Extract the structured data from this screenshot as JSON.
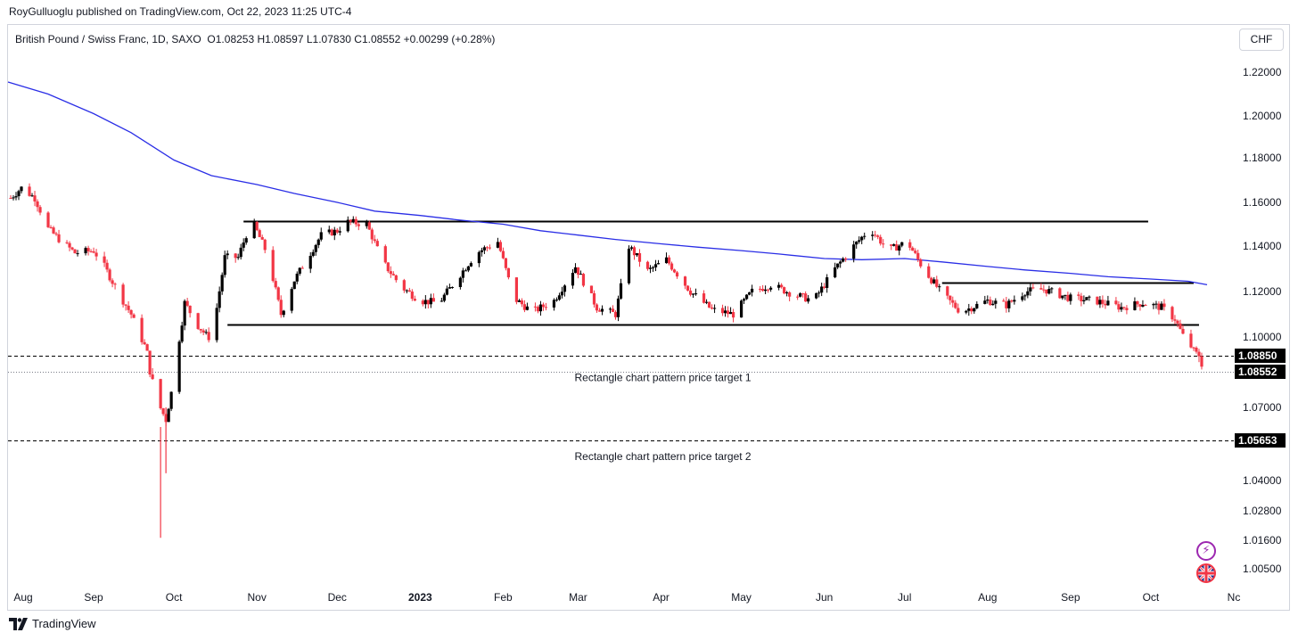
{
  "header": {
    "publisher": "RoyGulluoglu published on TradingView.com, Oct 22, 2023 11:25 UTC-4"
  },
  "legend": {
    "symbol": "British Pound / Swiss Franc, 1D, SAXO",
    "open": "O1.08253",
    "high": "H1.08597",
    "low": "L1.07830",
    "close": "C1.08552",
    "change": "+0.00299 (+0.28%)"
  },
  "currency_button": "CHF",
  "footer": {
    "brand": "TradingView"
  },
  "icons": {
    "alert": "lightning-bolt-icon",
    "flag": "uk-flag-icon"
  },
  "colors": {
    "up_candle": "#000000",
    "down_candle": "#f23645",
    "moving_average": "#2a2ee6",
    "lines": "#000000"
  },
  "chart_data": {
    "type": "candlestick",
    "title": "British Pound / Swiss Franc, 1D, SAXO",
    "ylim": [
      0.998,
      1.227
    ],
    "y_ticks": [
      "1.22000",
      "1.20000",
      "1.18000",
      "1.16000",
      "1.14000",
      "1.12000",
      "1.10000",
      "1.07000",
      "1.04000",
      "1.02800",
      "1.01600",
      "1.00500"
    ],
    "x_ticks": [
      "Aug",
      "Sep",
      "Oct",
      "Nov",
      "Dec",
      "2023",
      "Feb",
      "Mar",
      "Apr",
      "May",
      "Jun",
      "Jul",
      "Aug",
      "Sep",
      "Oct",
      "Nc"
    ],
    "x_tick_dates": [
      "2022-08-01",
      "2022-09-01",
      "2022-10-01",
      "2022-11-01",
      "2022-12-01",
      "2023-01-01",
      "2023-02-01",
      "2023-03-01",
      "2023-04-01",
      "2023-05-01",
      "2023-06-01",
      "2023-07-01",
      "2023-08-01",
      "2023-09-01",
      "2023-10-01",
      "2023-11-01"
    ],
    "price_labels": [
      {
        "value": 1.0885,
        "label": "1.08850"
      },
      {
        "value": 1.08552,
        "label": "1.08552"
      },
      {
        "value": 1.05653,
        "label": "1.05653"
      }
    ],
    "horizontal_lines": [
      {
        "value": 1.1515,
        "from": "2022-10-27",
        "to": "2023-09-30",
        "style": "solid"
      },
      {
        "value": 1.1055,
        "from": "2022-10-21",
        "to": "2023-10-19",
        "style": "solid"
      },
      {
        "value": 1.124,
        "from": "2023-07-15",
        "to": "2023-10-17",
        "style": "solid"
      },
      {
        "value": 1.0885,
        "from": "2022-07-31",
        "to": "2023-11-01",
        "style": "dashed"
      },
      {
        "value": 1.08552,
        "from": "2022-07-31",
        "to": "2023-11-01",
        "style": "dotted"
      },
      {
        "value": 1.05653,
        "from": "2022-07-31",
        "to": "2023-11-01",
        "style": "dashed"
      }
    ],
    "annotations": [
      {
        "text": "Rectangle chart pattern price target 1",
        "date": "2023-03-15",
        "value": 1.083
      },
      {
        "text": "Rectangle chart pattern price target 2",
        "date": "2023-03-15",
        "value": 1.05
      }
    ],
    "moving_average": {
      "name": "",
      "points": [
        [
          "2022-07-31",
          1.2155
        ],
        [
          "2022-08-15",
          1.21
        ],
        [
          "2022-09-01",
          1.201
        ],
        [
          "2022-09-15",
          1.192
        ],
        [
          "2022-10-01",
          1.179
        ],
        [
          "2022-10-15",
          1.172
        ],
        [
          "2022-11-01",
          1.168
        ],
        [
          "2022-11-15",
          1.164
        ],
        [
          "2022-12-01",
          1.16
        ],
        [
          "2022-12-15",
          1.156
        ],
        [
          "2023-01-01",
          1.154
        ],
        [
          "2023-01-15",
          1.152
        ],
        [
          "2023-02-01",
          1.15
        ],
        [
          "2023-02-15",
          1.147
        ],
        [
          "2023-03-01",
          1.145
        ],
        [
          "2023-03-15",
          1.143
        ],
        [
          "2023-04-01",
          1.141
        ],
        [
          "2023-04-15",
          1.1395
        ],
        [
          "2023-05-01",
          1.138
        ],
        [
          "2023-05-15",
          1.1365
        ],
        [
          "2023-06-01",
          1.1345
        ],
        [
          "2023-06-15",
          1.134
        ],
        [
          "2023-07-01",
          1.1345
        ],
        [
          "2023-07-15",
          1.133
        ],
        [
          "2023-08-01",
          1.131
        ],
        [
          "2023-08-15",
          1.1295
        ],
        [
          "2023-09-01",
          1.128
        ],
        [
          "2023-09-15",
          1.1265
        ],
        [
          "2023-10-01",
          1.1255
        ],
        [
          "2023-10-15",
          1.1245
        ],
        [
          "2023-10-22",
          1.123
        ]
      ]
    },
    "candles_close": [
      [
        "2022-08-01",
        1.162
      ],
      [
        "2022-08-05",
        1.1665
      ],
      [
        "2022-08-10",
        1.162
      ],
      [
        "2022-08-15",
        1.148
      ],
      [
        "2022-08-20",
        1.142
      ],
      [
        "2022-08-25",
        1.137
      ],
      [
        "2022-09-01",
        1.138
      ],
      [
        "2022-09-05",
        1.131
      ],
      [
        "2022-09-10",
        1.12
      ],
      [
        "2022-09-15",
        1.11
      ],
      [
        "2022-09-20",
        1.095
      ],
      [
        "2022-09-25",
        1.072
      ],
      [
        "2022-09-28",
        1.065
      ],
      [
        "2022-10-01",
        1.082
      ],
      [
        "2022-10-05",
        1.115
      ],
      [
        "2022-10-10",
        1.105
      ],
      [
        "2022-10-15",
        1.098
      ],
      [
        "2022-10-20",
        1.135
      ],
      [
        "2022-10-25",
        1.135
      ],
      [
        "2022-10-30",
        1.152
      ],
      [
        "2022-11-05",
        1.136
      ],
      [
        "2022-11-10",
        1.11
      ],
      [
        "2022-11-15",
        1.125
      ],
      [
        "2022-11-20",
        1.135
      ],
      [
        "2022-11-25",
        1.145
      ],
      [
        "2022-12-01",
        1.147
      ],
      [
        "2022-12-05",
        1.151
      ],
      [
        "2022-12-12",
        1.15
      ],
      [
        "2022-12-18",
        1.133
      ],
      [
        "2022-12-25",
        1.122
      ],
      [
        "2023-01-01",
        1.116
      ],
      [
        "2023-01-08",
        1.115
      ],
      [
        "2023-01-15",
        1.126
      ],
      [
        "2023-01-22",
        1.137
      ],
      [
        "2023-01-30",
        1.142
      ],
      [
        "2023-02-05",
        1.117
      ],
      [
        "2023-02-12",
        1.111
      ],
      [
        "2023-02-20",
        1.116
      ],
      [
        "2023-02-28",
        1.131
      ],
      [
        "2023-03-08",
        1.113
      ],
      [
        "2023-03-15",
        1.11
      ],
      [
        "2023-03-20",
        1.14
      ],
      [
        "2023-03-27",
        1.129
      ],
      [
        "2023-04-03",
        1.134
      ],
      [
        "2023-04-12",
        1.12
      ],
      [
        "2023-04-20",
        1.112
      ],
      [
        "2023-04-28",
        1.11
      ],
      [
        "2023-05-05",
        1.12
      ],
      [
        "2023-05-12",
        1.123
      ],
      [
        "2023-05-20",
        1.119
      ],
      [
        "2023-05-28",
        1.116
      ],
      [
        "2023-06-05",
        1.13
      ],
      [
        "2023-06-12",
        1.14
      ],
      [
        "2023-06-18",
        1.148
      ],
      [
        "2023-06-25",
        1.138
      ],
      [
        "2023-07-02",
        1.142
      ],
      [
        "2023-07-08",
        1.13
      ],
      [
        "2023-07-15",
        1.119
      ],
      [
        "2023-07-22",
        1.111
      ],
      [
        "2023-08-01",
        1.116
      ],
      [
        "2023-08-08",
        1.114
      ],
      [
        "2023-08-15",
        1.12
      ],
      [
        "2023-08-22",
        1.121
      ],
      [
        "2023-09-01",
        1.117
      ],
      [
        "2023-09-10",
        1.116
      ],
      [
        "2023-09-20",
        1.113
      ],
      [
        "2023-09-28",
        1.115
      ],
      [
        "2023-10-05",
        1.113
      ],
      [
        "2023-10-10",
        1.108
      ],
      [
        "2023-10-14",
        1.098
      ],
      [
        "2023-10-18",
        1.09
      ],
      [
        "2023-10-22",
        1.0855
      ]
    ]
  }
}
